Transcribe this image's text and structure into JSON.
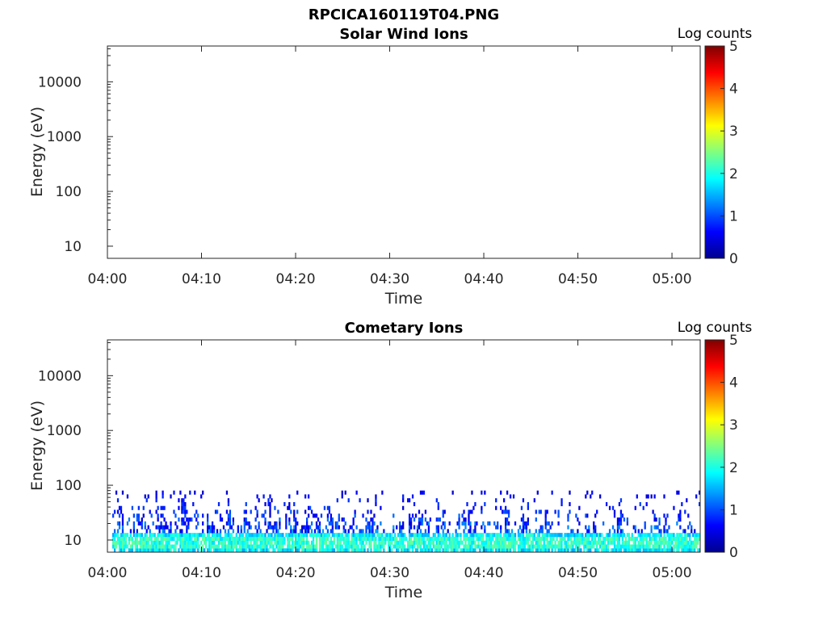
{
  "figure_title": "RPCICA160119T04.PNG",
  "chart_data": [
    {
      "type": "heatmap",
      "title": "Solar Wind Ions",
      "xlabel": "Time",
      "ylabel": "Energy (eV)",
      "x_tick_labels": [
        "04:00",
        "04:10",
        "04:20",
        "04:30",
        "04:40",
        "04:50",
        "05:00"
      ],
      "x_range_minutes": [
        0,
        63
      ],
      "y_scale": "log",
      "y_tick_values": [
        10,
        100,
        1000,
        10000
      ],
      "y_tick_labels": [
        "10",
        "100",
        "1000",
        "10000"
      ],
      "ylim": [
        6,
        45000
      ],
      "colorbar": {
        "label": "Log counts",
        "range": [
          0,
          5
        ],
        "ticks": [
          "0",
          "1",
          "2",
          "3",
          "4",
          "5"
        ],
        "colormap": "jet"
      },
      "data_summary": "empty - no counts"
    },
    {
      "type": "heatmap",
      "title": "Cometary Ions",
      "xlabel": "Time",
      "ylabel": "Energy (eV)",
      "x_tick_labels": [
        "04:00",
        "04:10",
        "04:20",
        "04:30",
        "04:40",
        "04:50",
        "05:00"
      ],
      "x_range_minutes": [
        0,
        63
      ],
      "y_scale": "log",
      "y_tick_values": [
        10,
        100,
        1000,
        10000
      ],
      "y_tick_labels": [
        "10",
        "100",
        "1000",
        "10000"
      ],
      "ylim": [
        6,
        45000
      ],
      "colorbar": {
        "label": "Log counts",
        "range": [
          0,
          5
        ],
        "ticks": [
          "0",
          "1",
          "2",
          "3",
          "4",
          "5"
        ],
        "colormap": "jet"
      },
      "signal_energy_range_eV": [
        6,
        80
      ],
      "signal_peak_log_counts": 2.4,
      "signal_typical_log_counts": 1.5
    }
  ]
}
